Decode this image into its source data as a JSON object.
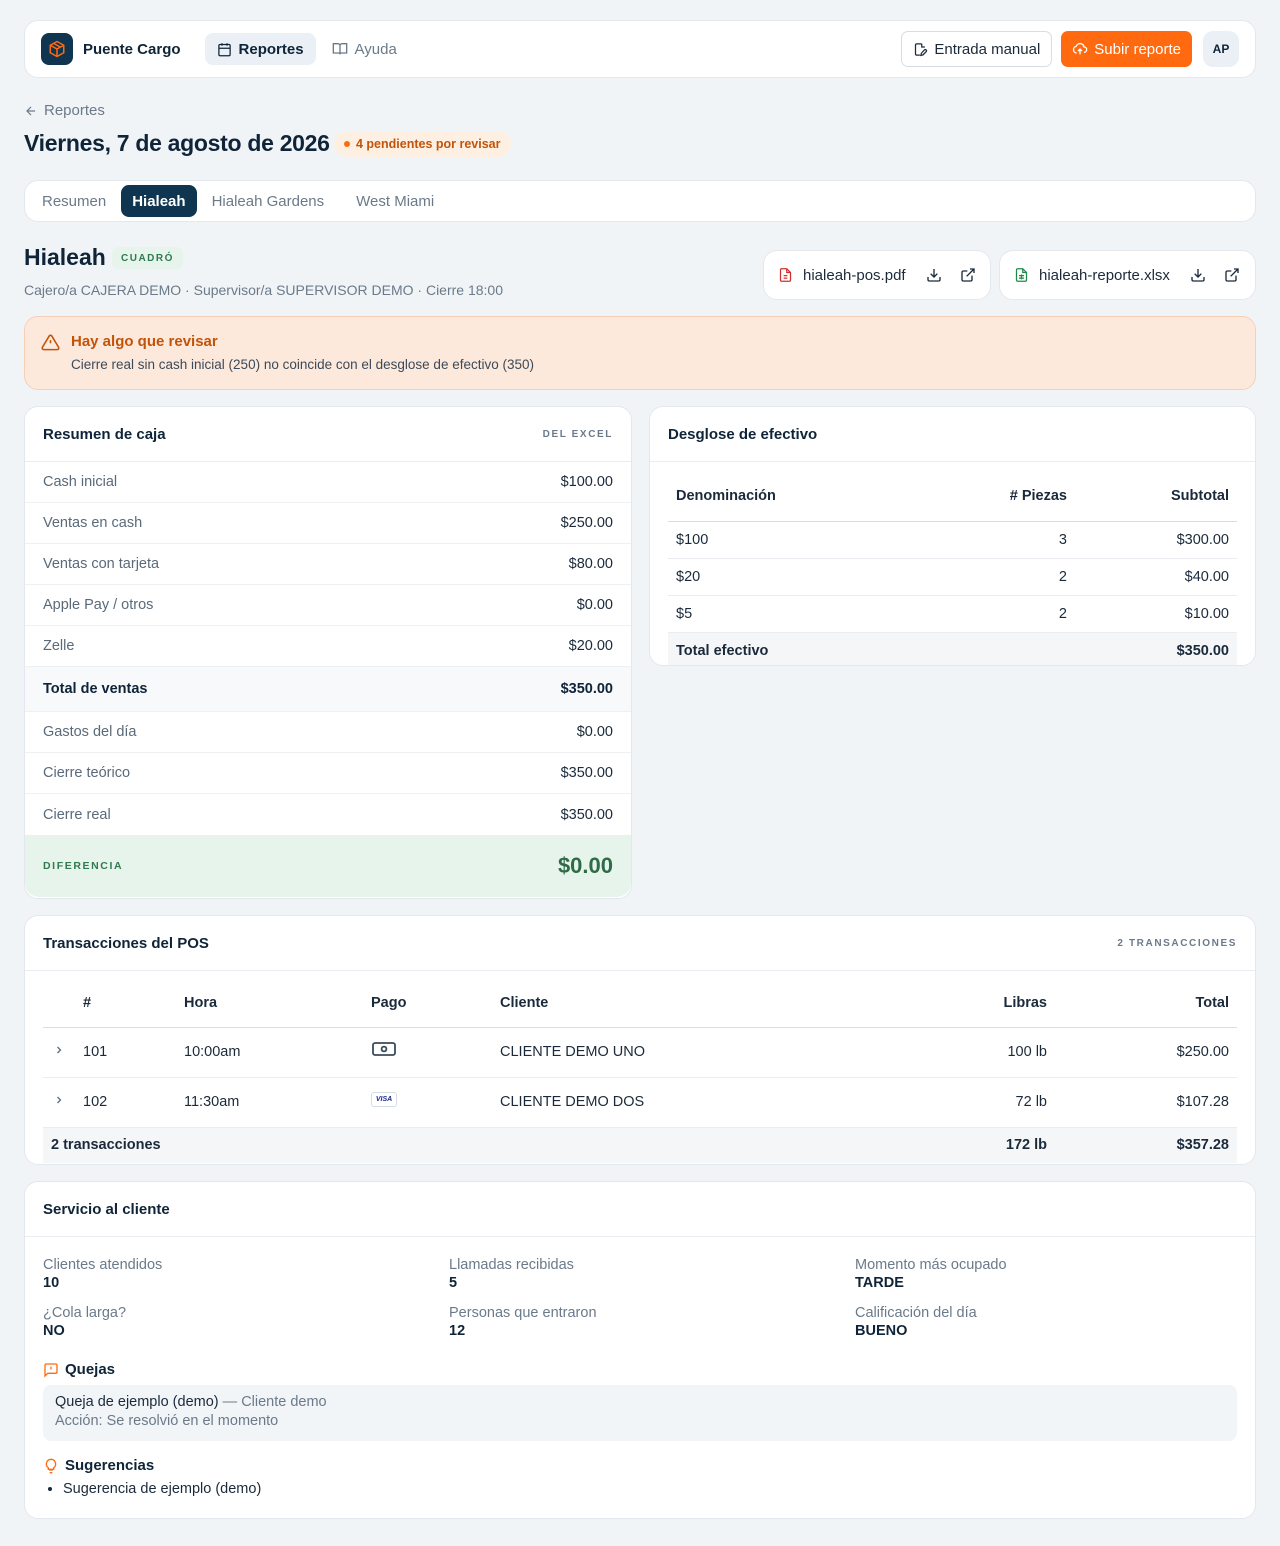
{
  "app": {
    "brand": "Puente Cargo",
    "user_initials": "AP"
  },
  "nav": {
    "reportes": "Reportes",
    "ayuda": "Ayuda"
  },
  "actions": {
    "manual": "Entrada manual",
    "upload": "Subir reporte"
  },
  "header": {
    "back": "Reportes",
    "title": "Viernes, 7 de agosto de 2026",
    "pending": "4 pendientes por revisar"
  },
  "tabs": [
    "Resumen",
    "Hialeah",
    "Hialeah Gardens",
    "West Miami"
  ],
  "location": {
    "name": "Hialeah",
    "status": "CUADRÓ",
    "meta": "Cajero/a CAJERA DEMO · Supervisor/a SUPERVISOR DEMO · Cierre 18:00",
    "files": [
      "hialeah-pos.pdf",
      "hialeah-reporte.xlsx"
    ]
  },
  "alert": {
    "title": "Hay algo que revisar",
    "message": "Cierre real sin cash inicial (250) no coincide con el desglose de efectivo (350)"
  },
  "caja": {
    "title": "Resumen de caja",
    "tag": "DEL EXCEL",
    "rows": [
      {
        "label": "Cash inicial",
        "value": "$100.00"
      },
      {
        "label": "Ventas en cash",
        "value": "$250.00"
      },
      {
        "label": "Ventas con tarjeta",
        "value": "$80.00"
      },
      {
        "label": "Apple Pay / otros",
        "value": "$0.00"
      },
      {
        "label": "Zelle",
        "value": "$20.00"
      },
      {
        "label": "Total de ventas",
        "value": "$350.00"
      },
      {
        "label": "Gastos del día",
        "value": "$0.00"
      },
      {
        "label": "Cierre teórico",
        "value": "$350.00"
      },
      {
        "label": "Cierre real",
        "value": "$350.00"
      }
    ],
    "diff_label": "DIFERENCIA",
    "diff_value": "$0.00"
  },
  "efectivo": {
    "title": "Desglose de efectivo",
    "headers": [
      "Denominación",
      "# Piezas",
      "Subtotal"
    ],
    "rows": [
      [
        "$100",
        "3",
        "$300.00"
      ],
      [
        "$20",
        "2",
        "$40.00"
      ],
      [
        "$5",
        "2",
        "$10.00"
      ]
    ],
    "total_label": "Total efectivo",
    "total_value": "$350.00"
  },
  "pos": {
    "title": "Transacciones del POS",
    "tag": "2 TRANSACCIONES",
    "headers": [
      "#",
      "Hora",
      "Pago",
      "Cliente",
      "Libras",
      "Total"
    ],
    "rows": [
      {
        "num": "101",
        "time": "10:00am",
        "pay": "cash-icon",
        "client": "CLIENTE DEMO UNO",
        "lbs": "100 lb",
        "total": "$250.00"
      },
      {
        "num": "102",
        "time": "11:30am",
        "pay": "visa-icon",
        "client": "CLIENTE DEMO DOS",
        "lbs": "72 lb",
        "total": "$107.28"
      }
    ],
    "visa_text": "VISA",
    "footer_label": "2 transacciones",
    "footer_lbs": "172 lb",
    "footer_total": "$357.28"
  },
  "servicio": {
    "title": "Servicio al cliente",
    "stats": [
      {
        "label": "Clientes atendidos",
        "value": "10"
      },
      {
        "label": "Llamadas recibidas",
        "value": "5"
      },
      {
        "label": "Momento más ocupado",
        "value": "TARDE"
      },
      {
        "label": "¿Cola larga?",
        "value": "NO"
      },
      {
        "label": "Personas que entraron",
        "value": "12"
      },
      {
        "label": "Calificación del día",
        "value": "BUENO"
      }
    ],
    "quejas_title": "Quejas",
    "queja_text": "Queja de ejemplo (demo)",
    "queja_sep": " — ",
    "queja_client": "Cliente demo",
    "queja_action": "Acción: Se resolvió en el momento",
    "sugerencias_title": "Sugerencias",
    "sugerencias": [
      "Sugerencia de ejemplo (demo)"
    ]
  },
  "colors": {
    "accent": "#ff6a10",
    "navy": "#0f3550",
    "success": "#2f7a4f",
    "warning": "#c2540a"
  }
}
